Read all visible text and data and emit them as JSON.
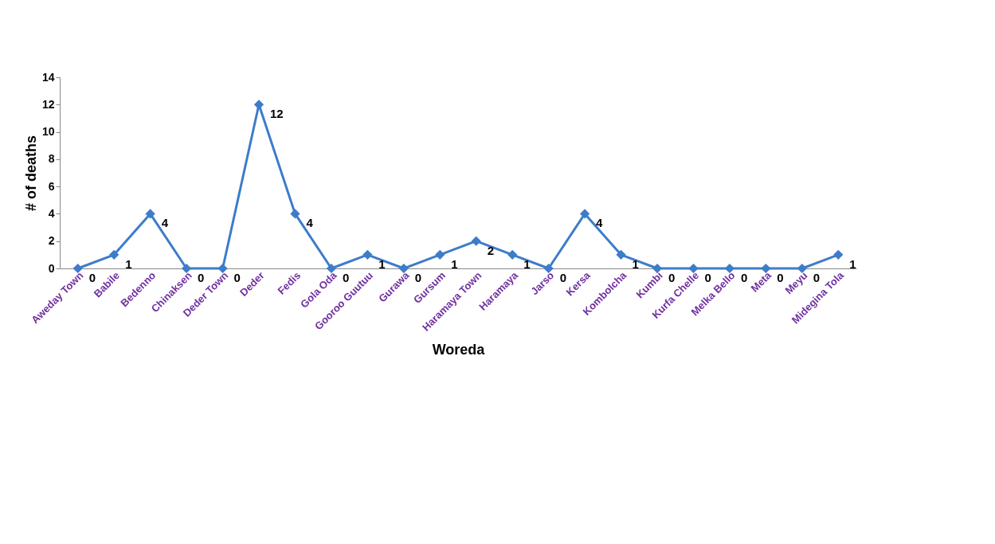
{
  "chart_data": {
    "type": "line",
    "xlabel": "Woreda",
    "ylabel": "# of deaths",
    "categories": [
      "Aweday Town",
      "Babile",
      "Bedenno",
      "Chinaksen",
      "Deder Town",
      "Deder",
      "Fedis",
      "Gola Oda",
      "Gooroo Guutuu",
      "Gurawa",
      "Gursum",
      "Haramaya Town",
      "Haramaya",
      "Jarso",
      "Kersa",
      "Kombolcha",
      "Kumbi",
      "Kurfa Chelle",
      "Melka Bello",
      "Meta",
      "Meyu",
      "Midegina Tola"
    ],
    "series": [
      {
        "color": "#3d7cc9",
        "values": [
          0,
          1,
          4,
          0,
          0,
          12,
          4,
          0,
          1,
          0,
          1,
          2,
          1,
          0,
          4,
          1,
          0,
          0,
          0,
          0,
          0,
          1
        ]
      }
    ],
    "ylim": [
      0,
      14
    ],
    "yticks": [
      0,
      2,
      4,
      6,
      8,
      10,
      12,
      14
    ],
    "data_labels": true,
    "grid": false,
    "legend": false,
    "marker": "diamond",
    "line_style": "solid"
  }
}
